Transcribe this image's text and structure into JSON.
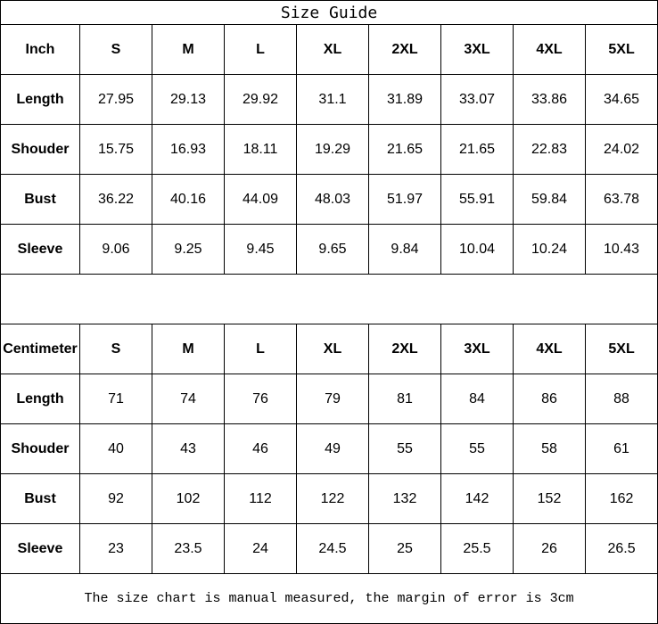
{
  "title": "Size Guide",
  "sizes": [
    "S",
    "M",
    "L",
    "XL",
    "2XL",
    "3XL",
    "4XL",
    "5XL"
  ],
  "inch": {
    "unit_label": "Inch",
    "rows": [
      {
        "label": "Length",
        "values": [
          "27.95",
          "29.13",
          "29.92",
          "31.1",
          "31.89",
          "33.07",
          "33.86",
          "34.65"
        ]
      },
      {
        "label": "Shouder",
        "values": [
          "15.75",
          "16.93",
          "18.11",
          "19.29",
          "21.65",
          "21.65",
          "22.83",
          "24.02"
        ]
      },
      {
        "label": "Bust",
        "values": [
          "36.22",
          "40.16",
          "44.09",
          "48.03",
          "51.97",
          "55.91",
          "59.84",
          "63.78"
        ]
      },
      {
        "label": "Sleeve",
        "values": [
          "9.06",
          "9.25",
          "9.45",
          "9.65",
          "9.84",
          "10.04",
          "10.24",
          "10.43"
        ]
      }
    ]
  },
  "cm": {
    "unit_label": "Centimeter",
    "rows": [
      {
        "label": "Length",
        "values": [
          "71",
          "74",
          "76",
          "79",
          "81",
          "84",
          "86",
          "88"
        ]
      },
      {
        "label": "Shouder",
        "values": [
          "40",
          "43",
          "46",
          "49",
          "55",
          "55",
          "58",
          "61"
        ]
      },
      {
        "label": "Bust",
        "values": [
          "92",
          "102",
          "112",
          "122",
          "132",
          "142",
          "152",
          "162"
        ]
      },
      {
        "label": "Sleeve",
        "values": [
          "23",
          "23.5",
          "24",
          "24.5",
          "25",
          "25.5",
          "26",
          "26.5"
        ]
      }
    ]
  },
  "note": "The size chart is manual measured, the margin of error is 3cm"
}
